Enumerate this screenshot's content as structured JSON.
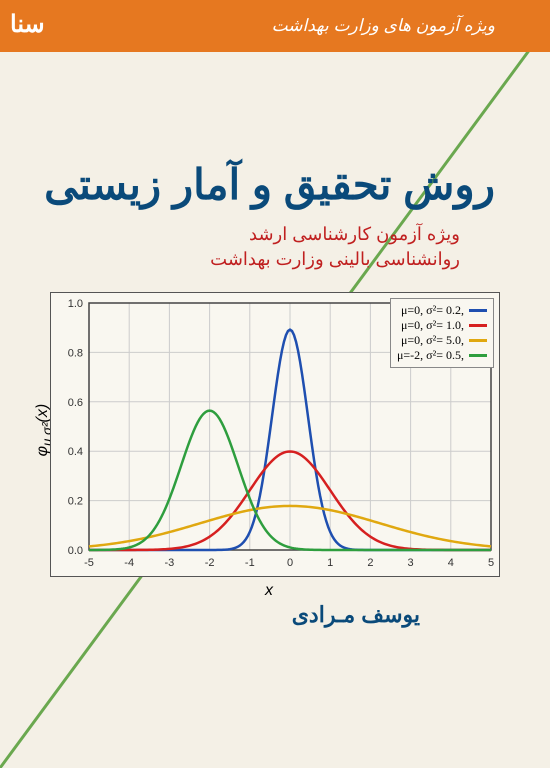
{
  "header": {
    "banner_text": "ویژه آزمون های وزارت بهداشت",
    "logo_text": "سنا",
    "band_color": "#e67820"
  },
  "title": "روش تحقیق و آمار زیستی",
  "subtitle_line1": "ویژه آزمون کارشناسی ارشد",
  "subtitle_line2": "روانشناسی بالینی وزارت بهداشت",
  "author": "یوسف مـرادی",
  "colors": {
    "title": "#0a4a7a",
    "subtitle": "#c02020",
    "author": "#0a4a7a",
    "diagonal_line": "#6aa84f"
  },
  "chart": {
    "type": "line",
    "background_color": "#f9f7f0",
    "border_color": "#555555",
    "grid_color": "#cccccc",
    "axis_color": "#444444",
    "xlim": [
      -5,
      5
    ],
    "ylim": [
      0,
      1.0
    ],
    "xtick_step": 1,
    "ytick_step": 0.2,
    "x_ticks": [
      -5,
      -4,
      -3,
      -2,
      -1,
      0,
      1,
      2,
      3,
      4,
      5
    ],
    "y_ticks": [
      0.0,
      0.2,
      0.4,
      0.6,
      0.8,
      1.0
    ],
    "xlabel": "x",
    "ylabel": "φ_{μ,σ²}(x)",
    "line_width": 2.5,
    "tick_fontsize": 11,
    "label_fontsize": 16,
    "series": [
      {
        "name": "blue",
        "mu": 0,
        "sigma2": 0.2,
        "color": "#1f4fb0",
        "legend": "μ=0,  σ²= 0.2,"
      },
      {
        "name": "red",
        "mu": 0,
        "sigma2": 1.0,
        "color": "#d62020",
        "legend": "μ=0,  σ²= 1.0,"
      },
      {
        "name": "yellow",
        "mu": 0,
        "sigma2": 5.0,
        "color": "#e0a810",
        "legend": "μ=0,  σ²= 5.0,"
      },
      {
        "name": "green",
        "mu": -2,
        "sigma2": 0.5,
        "color": "#2e9e3e",
        "legend": "μ=-2, σ²= 0.5,"
      }
    ]
  }
}
